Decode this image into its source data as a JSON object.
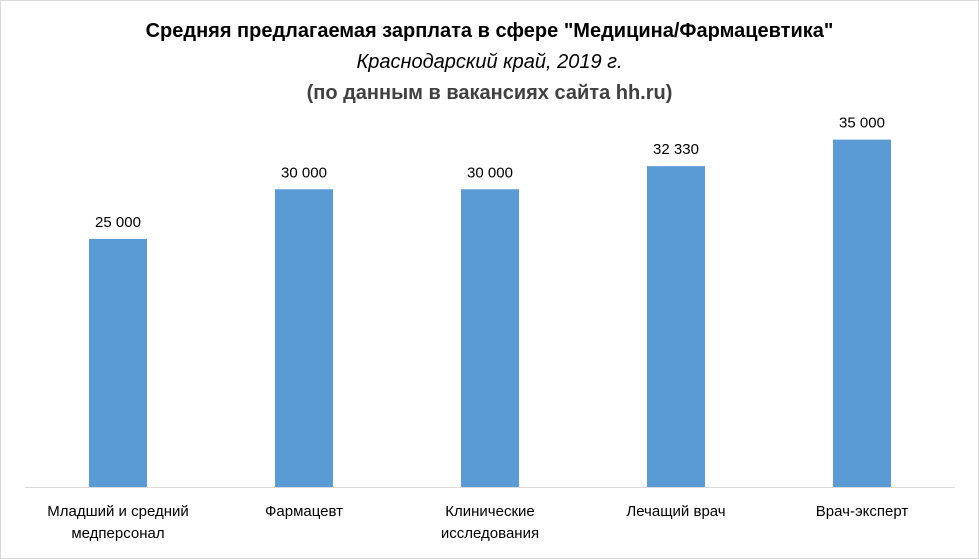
{
  "chart_data": {
    "type": "bar",
    "title": "Средняя предлагаемая зарплата в сфере \"Медицина/Фармацевтика\"",
    "subtitle": "Краснодарский край, 2019 г.",
    "subtitle2": "(по данным в вакансиях сайта hh.ru)",
    "categories": [
      "Младший и средний медперсонал",
      "Фармацевт",
      "Клинические исследования",
      "Лечащий врач",
      "Врач-эксперт"
    ],
    "values": [
      25000,
      30000,
      30000,
      32330,
      35000
    ],
    "data_labels": [
      "25 000",
      "30 000",
      "30 000",
      "32 330",
      "35 000"
    ],
    "ylim": [
      0,
      40000
    ],
    "grid": false,
    "legend": "none",
    "bar_color": "#5b9bd5",
    "axis_color": "#d9d9d9"
  }
}
